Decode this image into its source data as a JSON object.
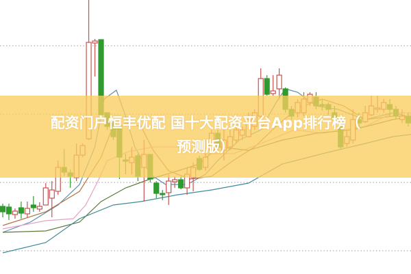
{
  "chart_data": {
    "type": "candlestick",
    "title": "配资门户恒丰优配 国十大配资平台App排行榜（预测版）",
    "x_range": [
      0,
      66
    ],
    "y_range": [
      0,
      400
    ],
    "grid": "horizontal-dotted",
    "grid_values": [
      33,
      133,
      233,
      333
    ],
    "colors": {
      "up": "#c8504f",
      "down": "#2f9a2f",
      "banner": "#facd5f",
      "grid": "#9a9a9a"
    },
    "candles": [
      [
        98,
        102,
        82,
        90
      ],
      [
        97,
        102,
        78,
        87
      ],
      [
        86,
        95,
        80,
        91
      ],
      [
        96,
        105,
        80,
        88
      ],
      [
        87,
        105,
        82,
        95
      ],
      [
        100,
        113,
        90,
        96
      ],
      [
        94,
        104,
        90,
        98
      ],
      [
        100,
        132,
        100,
        125
      ],
      [
        110,
        135,
        82,
        122
      ],
      [
        120,
        165,
        115,
        155
      ],
      [
        155,
        182,
        142,
        148
      ],
      [
        147,
        152,
        125,
        142
      ],
      [
        140,
        190,
        135,
        173
      ],
      [
        173,
        190,
        170,
        187
      ],
      [
        197,
        400,
        195,
        338
      ],
      [
        337,
        343,
        288,
        340
      ],
      [
        342,
        342,
        232,
        232
      ],
      [
        235,
        235,
        210,
        215
      ],
      [
        220,
        225,
        195,
        200
      ],
      [
        215,
        220,
        138,
        170
      ],
      [
        166,
        175,
        145,
        164
      ],
      [
        162,
        185,
        145,
        170
      ],
      [
        172,
        175,
        135,
        142
      ],
      [
        155,
        195,
        105,
        174
      ],
      [
        174,
        174,
        133,
        138
      ],
      [
        132,
        135,
        110,
        117
      ],
      [
        117,
        122,
        107,
        115
      ],
      [
        118,
        145,
        100,
        135
      ],
      [
        134,
        142,
        125,
        137
      ],
      [
        137,
        142,
        123,
        125
      ],
      [
        125,
        155,
        115,
        145
      ],
      [
        140,
        162,
        120,
        155
      ],
      [
        168,
        172,
        150,
        152
      ],
      [
        155,
        175,
        150,
        170
      ],
      [
        180,
        210,
        178,
        205
      ],
      [
        205,
        210,
        180,
        185
      ],
      [
        180,
        210,
        165,
        195
      ],
      [
        185,
        210,
        180,
        200
      ],
      [
        195,
        220,
        190,
        210
      ],
      [
        202,
        215,
        195,
        210
      ],
      [
        200,
        235,
        200,
        225
      ],
      [
        215,
        240,
        210,
        235
      ],
      [
        230,
        300,
        225,
        285
      ],
      [
        285,
        290,
        260,
        262
      ],
      [
        263,
        290,
        260,
        267
      ],
      [
        270,
        300,
        255,
        290
      ],
      [
        270,
        272,
        235,
        240
      ],
      [
        240,
        245,
        225,
        230
      ],
      [
        235,
        255,
        228,
        250
      ],
      [
        235,
        265,
        230,
        255
      ],
      [
        250,
        265,
        245,
        262
      ],
      [
        258,
        265,
        240,
        245
      ],
      [
        247,
        255,
        238,
        245
      ],
      [
        247,
        250,
        232,
        240
      ],
      [
        235,
        245,
        220,
        225
      ],
      [
        215,
        215,
        182,
        185
      ],
      [
        190,
        210,
        185,
        200
      ],
      [
        195,
        240,
        190,
        225
      ],
      [
        225,
        235,
        215,
        220
      ],
      [
        222,
        245,
        220,
        235
      ],
      [
        232,
        260,
        230,
        245
      ],
      [
        240,
        260,
        235,
        242
      ],
      [
        240,
        255,
        235,
        250
      ],
      [
        247,
        255,
        230,
        240
      ],
      [
        240,
        245,
        225,
        230
      ],
      [
        225,
        240,
        220,
        230
      ],
      [
        230,
        235,
        215,
        220
      ]
    ],
    "moving_averages": [
      {
        "color": "#5b8fae",
        "points": [
          [
            0,
            60
          ],
          [
            4.5,
            75
          ],
          [
            9,
            100
          ],
          [
            12.5,
            130
          ],
          [
            15,
            185
          ],
          [
            16.5,
            255
          ],
          [
            18.5,
            268
          ],
          [
            20,
            230
          ],
          [
            21.5,
            185
          ],
          [
            24,
            145
          ],
          [
            26.5,
            130
          ],
          [
            30,
            130
          ],
          [
            33,
            145
          ],
          [
            35,
            165
          ],
          [
            38.5,
            195
          ],
          [
            42,
            210
          ],
          [
            44.5,
            250
          ],
          [
            46,
            270
          ],
          [
            48,
            265
          ],
          [
            51,
            245
          ],
          [
            54.5,
            240
          ],
          [
            59,
            225
          ],
          [
            63.5,
            235
          ],
          [
            68,
            225
          ]
        ]
      },
      {
        "color": "#b5733c",
        "points": [
          [
            0,
            70
          ],
          [
            7,
            90
          ],
          [
            12.5,
            120
          ],
          [
            16,
            170
          ],
          [
            17.5,
            205
          ],
          [
            20,
            220
          ],
          [
            22.5,
            215
          ],
          [
            24.5,
            180
          ],
          [
            27,
            150
          ],
          [
            30.5,
            138
          ],
          [
            34,
            142
          ],
          [
            37.5,
            165
          ],
          [
            41,
            185
          ],
          [
            44.5,
            215
          ],
          [
            48,
            242
          ],
          [
            52,
            255
          ],
          [
            55.5,
            245
          ],
          [
            59,
            225
          ],
          [
            63.5,
            230
          ],
          [
            68,
            230
          ]
        ]
      },
      {
        "color": "#e4a2c4",
        "points": [
          [
            0,
            65
          ],
          [
            7,
            77
          ],
          [
            11.5,
            80
          ],
          [
            13.5,
            100
          ],
          [
            15.5,
            135
          ],
          [
            17,
            165
          ],
          [
            20.5,
            178
          ],
          [
            24.5,
            185
          ],
          [
            28.5,
            185
          ],
          [
            33,
            175
          ],
          [
            37.5,
            175
          ],
          [
            42,
            190
          ],
          [
            47.5,
            210
          ],
          [
            52,
            205
          ],
          [
            59,
            215
          ],
          [
            63.5,
            235
          ],
          [
            68,
            235
          ]
        ]
      },
      {
        "color": "#5b7a3a",
        "points": [
          [
            0,
            60
          ],
          [
            7,
            62
          ],
          [
            12.5,
            75
          ],
          [
            16,
            105
          ],
          [
            20,
            125
          ],
          [
            24,
            138
          ],
          [
            28.5,
            150
          ],
          [
            32,
            160
          ],
          [
            35,
            185
          ],
          [
            40,
            180
          ],
          [
            45.5,
            195
          ],
          [
            51,
            205
          ],
          [
            57,
            210
          ],
          [
            63.5,
            225
          ],
          [
            68,
            232
          ]
        ]
      },
      {
        "color": "#3f8a9a",
        "points": [
          [
            0,
            30
          ],
          [
            7,
            45
          ],
          [
            12.5,
            80
          ],
          [
            18,
            100
          ],
          [
            22.5,
            105
          ],
          [
            28.5,
            115
          ],
          [
            34,
            122
          ],
          [
            40,
            132
          ],
          [
            45.5,
            160
          ],
          [
            52,
            175
          ],
          [
            59,
            190
          ],
          [
            63.5,
            200
          ],
          [
            68,
            205
          ]
        ]
      }
    ]
  },
  "overlay": {
    "line1": "配资门户恒丰优配 国十大配资平台App排行榜（",
    "line2": "预测版）"
  }
}
